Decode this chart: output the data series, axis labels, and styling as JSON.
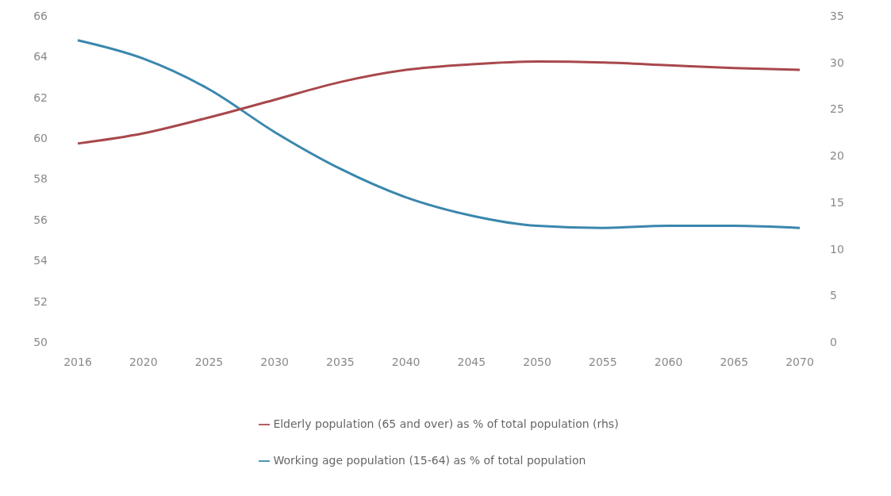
{
  "chart_data": {
    "type": "line",
    "categories": [
      "2016",
      "2020",
      "2025",
      "2030",
      "2035",
      "2040",
      "2045",
      "2050",
      "2055",
      "2060",
      "2065",
      "2070"
    ],
    "series": [
      {
        "name": "Working age population (15-64) as % of total population",
        "color": "#3a87ad",
        "values": [
          64.8,
          63.9,
          62.4,
          60.3,
          58.5,
          57.1,
          56.2,
          55.7,
          55.6,
          55.7,
          55.7,
          55.6
        ]
      },
      {
        "name": "Elderly population (65 and over) as % of total population (rhs)",
        "color": "#a8484c",
        "axis": "y2",
        "values": [
          21.3,
          22.4,
          24.1,
          26.0,
          27.9,
          29.2,
          29.8,
          30.1,
          30.0,
          29.7,
          29.4,
          29.2
        ]
      }
    ],
    "ylim": [
      50,
      66
    ],
    "yticks": [
      50,
      52,
      54,
      56,
      58,
      60,
      62,
      64,
      66
    ],
    "y2lim": [
      0,
      35
    ],
    "y2ticks": [
      0,
      5,
      10,
      15,
      20,
      25,
      30,
      35
    ],
    "grid": false,
    "legend": "bottom",
    "marker": "none",
    "line_style": "solid"
  }
}
